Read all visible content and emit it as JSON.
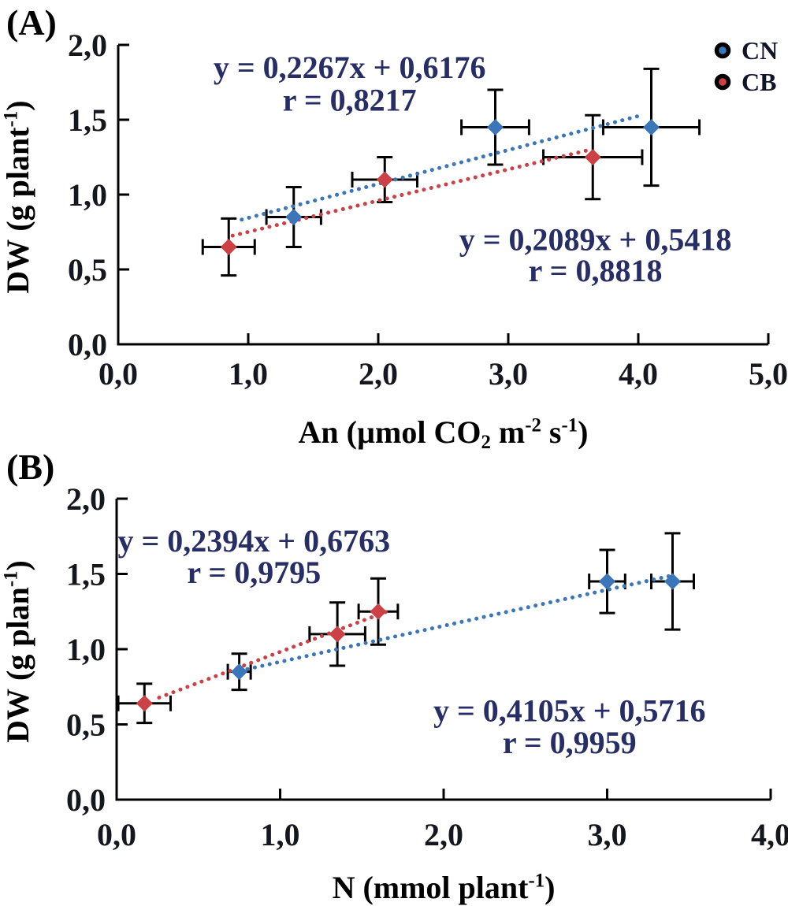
{
  "figure_letters": {
    "a": "(A)",
    "b": "(B)"
  },
  "text_colors": {
    "ticks": "#15171f",
    "equations": "#272e66",
    "titles": "#000000",
    "legend": "#10142a"
  },
  "chart_data": [
    {
      "type": "scatter",
      "panel_label": "(A)",
      "xlabel_parts": [
        {
          "t": "An (µmol CO"
        },
        {
          "t": "2",
          "style": "sub"
        },
        {
          "t": " m"
        },
        {
          "t": "-2",
          "style": "sup"
        },
        {
          "t": " s"
        },
        {
          "t": "-1",
          "style": "sup"
        },
        {
          "t": ")"
        }
      ],
      "ylabel_parts": [
        {
          "t": "DW (g plant"
        },
        {
          "t": "-1",
          "style": "sup"
        },
        {
          "t": ")"
        }
      ],
      "xlim": [
        0,
        5
      ],
      "ylim": [
        0,
        2
      ],
      "xticks": [
        {
          "v": 0,
          "label": "0,0"
        },
        {
          "v": 1,
          "label": "1,0"
        },
        {
          "v": 2,
          "label": "2,0"
        },
        {
          "v": 3,
          "label": "3,0"
        },
        {
          "v": 4,
          "label": "4,0"
        },
        {
          "v": 5,
          "label": "5,0"
        }
      ],
      "yticks": [
        {
          "v": 0,
          "label": "0,0"
        },
        {
          "v": 0.5,
          "label": "0,5"
        },
        {
          "v": 1,
          "label": "1,0"
        },
        {
          "v": 1.5,
          "label": "1,5"
        },
        {
          "v": 2,
          "label": "2,0"
        }
      ],
      "legend": {
        "position": "top-right",
        "entries": [
          {
            "name": "CN",
            "color": "#3A76B9"
          },
          {
            "name": "CB",
            "color": "#CB4146"
          }
        ]
      },
      "series": [
        {
          "name": "CN",
          "color": "#3A76B9",
          "marker": "diamond",
          "line_style": "dotted",
          "points": [
            {
              "x": 1.35,
              "y": 0.85,
              "xerr": 0.21,
              "yerr": 0.2
            },
            {
              "x": 2.9,
              "y": 1.45,
              "xerr": 0.26,
              "yerr": 0.25
            },
            {
              "x": 4.1,
              "y": 1.45,
              "xerr": 0.37,
              "yerr": 0.39
            }
          ],
          "trend": {
            "slope": 0.2267,
            "intercept": 0.6176,
            "x_from": 0.95,
            "x_to": 4.02
          },
          "annotation": {
            "equation": "y = 0,2267x + 0,6176",
            "r_label": "r = 0,8217",
            "x": 1.78,
            "eq_y": 1.78,
            "r_y": 1.56
          }
        },
        {
          "name": "CB",
          "color": "#CB4146",
          "marker": "diamond",
          "line_style": "dotted",
          "points": [
            {
              "x": 0.85,
              "y": 0.65,
              "xerr": 0.2,
              "yerr": 0.19
            },
            {
              "x": 2.05,
              "y": 1.1,
              "xerr": 0.25,
              "yerr": 0.15
            },
            {
              "x": 3.65,
              "y": 1.25,
              "xerr": 0.38,
              "yerr": 0.28
            }
          ],
          "trend": {
            "slope": 0.2089,
            "intercept": 0.5418,
            "x_from": 0.88,
            "x_to": 3.62
          },
          "annotation": {
            "equation": "y = 0,2089x + 0,5418",
            "r_label": "r = 0,8818",
            "x": 3.67,
            "eq_y": 0.63,
            "r_y": 0.42
          }
        }
      ]
    },
    {
      "type": "scatter",
      "panel_label": "(B)",
      "xlabel_parts": [
        {
          "t": "N (mmol plant"
        },
        {
          "t": "-1",
          "style": "sup"
        },
        {
          "t": ")"
        }
      ],
      "ylabel_parts": [
        {
          "t": "DW (g plan"
        },
        {
          "t": "-1",
          "style": "sup"
        },
        {
          "t": ")"
        }
      ],
      "xlim": [
        0,
        4
      ],
      "ylim": [
        0,
        2
      ],
      "xticks": [
        {
          "v": 0,
          "label": "0,0"
        },
        {
          "v": 1,
          "label": "1,0"
        },
        {
          "v": 2,
          "label": "2,0"
        },
        {
          "v": 3,
          "label": "3,0"
        },
        {
          "v": 4,
          "label": "4,0"
        }
      ],
      "yticks": [
        {
          "v": 0,
          "label": "0,0"
        },
        {
          "v": 0.5,
          "label": "0,5"
        },
        {
          "v": 1,
          "label": "1,0"
        },
        {
          "v": 1.5,
          "label": "1,5"
        },
        {
          "v": 2,
          "label": "2,0"
        }
      ],
      "legend": null,
      "series": [
        {
          "name": "CN",
          "color": "#3A76B9",
          "marker": "diamond",
          "line_style": "dotted",
          "points": [
            {
              "x": 0.75,
              "y": 0.85,
              "xerr": 0.07,
              "yerr": 0.12
            },
            {
              "x": 3.0,
              "y": 1.45,
              "xerr": 0.11,
              "yerr": 0.21
            },
            {
              "x": 3.4,
              "y": 1.45,
              "xerr": 0.13,
              "yerr": 0.32
            }
          ],
          "trend": {
            "slope": 0.2394,
            "intercept": 0.6763,
            "x_from": 0.8,
            "x_to": 3.4
          },
          "annotation": {
            "equation": "y = 0,2394x + 0,6763",
            "r_label": "r = 0,9795",
            "x": 0.84,
            "eq_y": 1.65,
            "r_y": 1.44
          }
        },
        {
          "name": "CB",
          "color": "#CB4146",
          "marker": "diamond",
          "line_style": "dotted",
          "points": [
            {
              "x": 0.17,
              "y": 0.64,
              "xerr": 0.16,
              "yerr": 0.13
            },
            {
              "x": 1.35,
              "y": 1.1,
              "xerr": 0.17,
              "yerr": 0.21
            },
            {
              "x": 1.6,
              "y": 1.25,
              "xerr": 0.12,
              "yerr": 0.22
            }
          ],
          "trend": {
            "slope": 0.4105,
            "intercept": 0.5716,
            "x_from": 0.26,
            "x_to": 1.68
          },
          "annotation": {
            "equation": "y = 0,4105x + 0,5716",
            "r_label": "r = 0,9959",
            "x": 2.77,
            "eq_y": 0.52,
            "r_y": 0.31
          }
        }
      ]
    }
  ]
}
